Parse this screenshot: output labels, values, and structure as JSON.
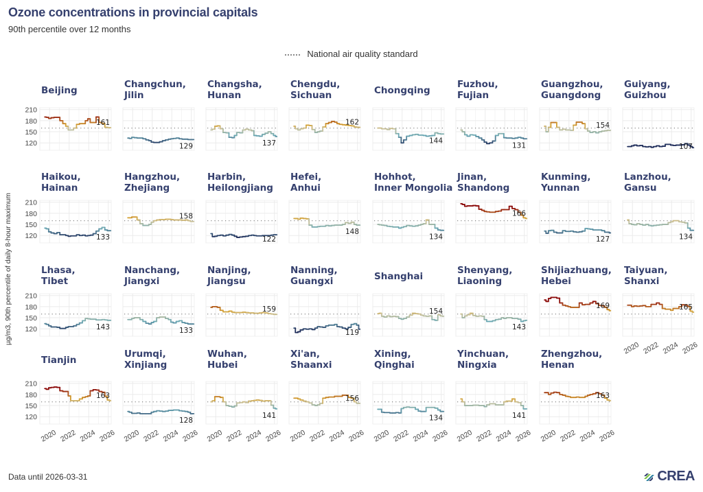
{
  "header": {
    "title": "Ozone concentrations in provincial capitals",
    "subtitle": "90th percentile over 12 months"
  },
  "legend": {
    "label": "National air quality standard"
  },
  "footer": {
    "data_until": "Data until 2026-03-31",
    "logo_text": "CREA"
  },
  "colors": {
    "title": "#35406e",
    "grid": "#ebebeb",
    "standard_line": "#888888",
    "scale_low": "#1f2d5a",
    "scale_mid_low": "#6aa8b4",
    "scale_mid": "#c9c19a",
    "scale_mid_high": "#d4a030",
    "scale_high": "#8b0a0a"
  },
  "chart_data": {
    "type": "line",
    "title": "Ozone concentrations in provincial capitals",
    "subtitle": "90th percentile over 12 months",
    "ylabel": "µg/m3, 90th percentile of daily 8-hour maximum",
    "xlabel": "",
    "ylim": [
      100,
      215
    ],
    "yticks": [
      120,
      150,
      180,
      210
    ],
    "xlim": [
      2019.0,
      2026.3
    ],
    "xticks": [
      2020,
      2022,
      2024,
      2026
    ],
    "grid": true,
    "legend_position": "top-center",
    "reference_line": {
      "name": "National air quality standard",
      "value": 160,
      "style": "dotted"
    },
    "x": [
      2019.5,
      2019.8,
      2020.0,
      2020.3,
      2020.6,
      2020.9,
      2021.2,
      2021.5,
      2021.8,
      2022.0,
      2022.3,
      2022.6,
      2022.9,
      2023.2,
      2023.5,
      2023.8,
      2024.0,
      2024.3,
      2024.6,
      2024.9,
      2025.2,
      2025.5,
      2025.8,
      2026.0,
      2026.25
    ],
    "series": [
      {
        "name": "Beijing",
        "title": [
          "Beijing"
        ],
        "end_label": "161",
        "values": [
          190,
          189,
          186,
          188,
          189,
          189,
          180,
          172,
          165,
          155,
          155,
          160,
          170,
          172,
          172,
          180,
          185,
          175,
          175,
          190,
          175,
          172,
          162,
          161,
          161
        ]
      },
      {
        "name": "Changchun",
        "title": [
          "Changchun,",
          "Jilin"
        ],
        "end_label": "129",
        "values": [
          133,
          132,
          135,
          134,
          133,
          133,
          131,
          128,
          126,
          122,
          121,
          121,
          123,
          126,
          128,
          130,
          131,
          132,
          133,
          131,
          130,
          130,
          129,
          129,
          129
        ]
      },
      {
        "name": "Changsha",
        "title": [
          "Changsha,",
          "Hunan"
        ],
        "end_label": "137",
        "values": [
          155,
          157,
          165,
          166,
          158,
          148,
          147,
          135,
          134,
          140,
          148,
          147,
          155,
          157,
          155,
          153,
          140,
          139,
          138,
          143,
          146,
          150,
          145,
          140,
          137
        ]
      },
      {
        "name": "Chengdu",
        "title": [
          "Chengdu,",
          "Sichuan"
        ],
        "end_label": "162",
        "values": [
          165,
          158,
          155,
          158,
          160,
          168,
          167,
          156,
          148,
          150,
          152,
          163,
          172,
          175,
          178,
          176,
          172,
          170,
          169,
          168,
          167,
          166,
          163,
          162,
          162
        ]
      },
      {
        "name": "Chongqing",
        "title": [
          "Chongqing"
        ],
        "end_label": "144",
        "values": [
          160,
          160,
          158,
          158,
          156,
          159,
          158,
          145,
          135,
          120,
          128,
          138,
          140,
          142,
          143,
          141,
          141,
          140,
          138,
          139,
          140,
          147,
          145,
          144,
          144
        ]
      },
      {
        "name": "Fuzhou",
        "title": [
          "Fuzhou,",
          "Fujian"
        ],
        "end_label": "131",
        "values": [
          155,
          150,
          142,
          138,
          142,
          141,
          137,
          133,
          128,
          122,
          118,
          120,
          125,
          140,
          145,
          145,
          134,
          133,
          133,
          132,
          133,
          135,
          133,
          131,
          131
        ]
      },
      {
        "name": "Guangzhou",
        "title": [
          "Guangzhou,",
          "Guangdong"
        ],
        "end_label": "154",
        "values": [
          165,
          150,
          162,
          175,
          175,
          162,
          155,
          157,
          155,
          155,
          154,
          168,
          176,
          176,
          172,
          158,
          152,
          148,
          150,
          147,
          150,
          152,
          153,
          154,
          154
        ]
      },
      {
        "name": "Guiyang",
        "title": [
          "Guiyang,",
          "Guizhou"
        ],
        "end_label": "107",
        "values": [
          110,
          110,
          112,
          114,
          112,
          113,
          110,
          109,
          110,
          108,
          110,
          112,
          110,
          111,
          116,
          116,
          114,
          113,
          114,
          114,
          115,
          118,
          114,
          110,
          107
        ]
      },
      {
        "name": "Haikou",
        "title": [
          "Haikou,",
          "Hainan"
        ],
        "end_label": "133",
        "values": [
          140,
          138,
          130,
          127,
          125,
          128,
          122,
          122,
          120,
          118,
          119,
          119,
          122,
          120,
          121,
          119,
          120,
          121,
          125,
          132,
          138,
          142,
          135,
          133,
          133
        ]
      },
      {
        "name": "Hangzhou",
        "title": [
          "Hangzhou,",
          "Zhejiang"
        ],
        "end_label": "158",
        "values": [
          168,
          168,
          170,
          170,
          162,
          152,
          147,
          147,
          150,
          156,
          160,
          162,
          163,
          163,
          164,
          164,
          163,
          162,
          162,
          162,
          161,
          162,
          160,
          158,
          158
        ]
      },
      {
        "name": "Harbin",
        "title": [
          "Harbin,",
          "Heilongjiang"
        ],
        "end_label": "122",
        "values": [
          125,
          117,
          118,
          120,
          121,
          119,
          121,
          123,
          121,
          118,
          115,
          116,
          117,
          118,
          120,
          121,
          120,
          119,
          119,
          120,
          120,
          120,
          121,
          122,
          122
        ]
      },
      {
        "name": "Hefei",
        "title": [
          "Hefei,",
          "Anhui"
        ],
        "end_label": "148",
        "values": [
          166,
          166,
          164,
          167,
          166,
          165,
          148,
          143,
          143,
          144,
          145,
          145,
          147,
          146,
          147,
          148,
          148,
          148,
          150,
          155,
          153,
          156,
          150,
          148,
          148
        ]
      },
      {
        "name": "Hohhot",
        "title": [
          "Hohhot,",
          "Inner Mongolia"
        ],
        "end_label": "134",
        "values": [
          150,
          149,
          148,
          147,
          145,
          144,
          143,
          143,
          140,
          142,
          144,
          147,
          146,
          145,
          146,
          148,
          150,
          152,
          162,
          150,
          150,
          140,
          135,
          134,
          134
        ]
      },
      {
        "name": "Jinan",
        "title": [
          "Jinan,",
          "Shandong"
        ],
        "end_label": "166",
        "values": [
          206,
          204,
          199,
          200,
          200,
          201,
          200,
          191,
          188,
          185,
          184,
          183,
          183,
          185,
          186,
          190,
          190,
          190,
          199,
          193,
          190,
          183,
          175,
          168,
          166
        ]
      },
      {
        "name": "Kunming",
        "title": [
          "Kunming,",
          "Yunnan"
        ],
        "end_label": "127",
        "values": [
          132,
          126,
          133,
          134,
          129,
          127,
          127,
          133,
          131,
          131,
          132,
          130,
          129,
          130,
          132,
          139,
          138,
          137,
          135,
          135,
          135,
          133,
          129,
          129,
          127
        ]
      },
      {
        "name": "Lanzhou",
        "title": [
          "Lanzhou,",
          "Gansu"
        ],
        "end_label": "134",
        "values": [
          162,
          152,
          150,
          149,
          152,
          150,
          148,
          150,
          147,
          146,
          147,
          148,
          149,
          150,
          150,
          155,
          157,
          160,
          160,
          157,
          156,
          154,
          140,
          134,
          134
        ]
      },
      {
        "name": "Lhasa",
        "title": [
          "Lhasa,",
          "Tibet"
        ],
        "end_label": "143",
        "values": [
          134,
          132,
          128,
          125,
          125,
          124,
          121,
          121,
          124,
          126,
          126,
          128,
          132,
          136,
          142,
          148,
          147,
          146,
          146,
          144,
          144,
          145,
          144,
          143,
          143
        ]
      },
      {
        "name": "Nanchang",
        "title": [
          "Nanchang,",
          "Jiangxi"
        ],
        "end_label": "133",
        "values": [
          145,
          145,
          148,
          150,
          150,
          145,
          140,
          135,
          133,
          137,
          140,
          150,
          152,
          152,
          148,
          145,
          138,
          136,
          140,
          142,
          137,
          135,
          133,
          133,
          133
        ]
      },
      {
        "name": "Nanjing",
        "title": [
          "Nanjing,",
          "Jiangsu"
        ],
        "end_label": "159",
        "values": [
          178,
          180,
          180,
          178,
          170,
          166,
          166,
          168,
          165,
          164,
          164,
          164,
          165,
          164,
          163,
          163,
          162,
          162,
          163,
          164,
          163,
          161,
          160,
          159,
          159
        ]
      },
      {
        "name": "Nanning",
        "title": [
          "Nanning,",
          "Guangxi"
        ],
        "end_label": "119",
        "values": [
          122,
          110,
          112,
          117,
          120,
          119,
          120,
          118,
          122,
          126,
          125,
          124,
          128,
          130,
          130,
          132,
          126,
          125,
          122,
          120,
          124,
          132,
          134,
          130,
          119
        ]
      },
      {
        "name": "Shanghai",
        "title": [
          "Shanghai"
        ],
        "end_label": "154",
        "values": [
          161,
          162,
          154,
          152,
          155,
          153,
          154,
          153,
          148,
          146,
          148,
          152,
          157,
          162,
          161,
          160,
          157,
          155,
          154,
          155,
          145,
          143,
          158,
          155,
          154
        ]
      },
      {
        "name": "Shenyang",
        "title": [
          "Shenyang,",
          "Liaoning"
        ],
        "end_label": "143",
        "values": [
          160,
          150,
          155,
          158,
          162,
          156,
          154,
          155,
          154,
          145,
          140,
          140,
          142,
          145,
          146,
          150,
          148,
          150,
          150,
          148,
          148,
          146,
          140,
          142,
          143
        ]
      },
      {
        "name": "Shijiazhuang",
        "title": [
          "Shijiazhuang,",
          "Hebei"
        ],
        "end_label": "169",
        "values": [
          198,
          194,
          202,
          205,
          205,
          203,
          190,
          184,
          182,
          180,
          178,
          178,
          178,
          190,
          185,
          186,
          186,
          190,
          194,
          188,
          183,
          182,
          178,
          172,
          169
        ]
      },
      {
        "name": "Taiyuan",
        "title": [
          "Taiyuan,",
          "Shanxi"
        ],
        "end_label": "165",
        "values": [
          184,
          184,
          180,
          182,
          181,
          182,
          183,
          180,
          180,
          186,
          186,
          190,
          186,
          175,
          173,
          173,
          170,
          175,
          175,
          180,
          185,
          184,
          180,
          168,
          165
        ]
      },
      {
        "name": "Tianjin",
        "title": [
          "Tianjin"
        ],
        "end_label": "163",
        "values": [
          196,
          194,
          198,
          199,
          200,
          199,
          190,
          188,
          188,
          176,
          163,
          163,
          163,
          168,
          172,
          174,
          176,
          190,
          193,
          192,
          188,
          186,
          175,
          165,
          163
        ]
      },
      {
        "name": "Urumqi",
        "title": [
          "Urumqi,",
          "Xinjiang"
        ],
        "end_label": "128",
        "values": [
          134,
          132,
          129,
          129,
          130,
          128,
          128,
          128,
          128,
          132,
          134,
          136,
          135,
          134,
          135,
          137,
          137,
          138,
          138,
          136,
          135,
          134,
          132,
          128,
          128
        ]
      },
      {
        "name": "Wuhan",
        "title": [
          "Wuhan,",
          "Hubei"
        ],
        "end_label": "141",
        "values": [
          160,
          163,
          174,
          174,
          172,
          160,
          150,
          148,
          146,
          149,
          157,
          158,
          160,
          158,
          162,
          163,
          164,
          165,
          164,
          162,
          163,
          163,
          151,
          143,
          141
        ]
      },
      {
        "name": "Xi'an",
        "title": [
          "Xi'an,",
          "Shaanxi"
        ],
        "end_label": "156",
        "values": [
          170,
          170,
          168,
          165,
          162,
          160,
          157,
          152,
          150,
          152,
          156,
          170,
          172,
          173,
          173,
          175,
          175,
          175,
          178,
          178,
          172,
          170,
          160,
          156,
          156
        ]
      },
      {
        "name": "Xining",
        "title": [
          "Xining,",
          "Qinghai"
        ],
        "end_label": "134",
        "values": [
          140,
          140,
          132,
          131,
          131,
          130,
          130,
          131,
          130,
          142,
          145,
          146,
          145,
          145,
          140,
          135,
          134,
          134,
          145,
          145,
          145,
          143,
          138,
          134,
          134
        ]
      },
      {
        "name": "Yinchuan",
        "title": [
          "Yinchuan,",
          "Ningxia"
        ],
        "end_label": "141",
        "values": [
          168,
          160,
          150,
          150,
          150,
          151,
          151,
          150,
          150,
          147,
          152,
          155,
          155,
          152,
          152,
          152,
          160,
          162,
          162,
          168,
          160,
          158,
          150,
          141,
          141
        ]
      },
      {
        "name": "Zhengzhou",
        "title": [
          "Zhengzhou,",
          "Henan"
        ],
        "end_label": "163",
        "values": [
          185,
          185,
          180,
          184,
          186,
          185,
          180,
          178,
          175,
          174,
          172,
          172,
          173,
          172,
          172,
          175,
          178,
          180,
          182,
          185,
          182,
          178,
          170,
          165,
          163
        ]
      }
    ]
  }
}
